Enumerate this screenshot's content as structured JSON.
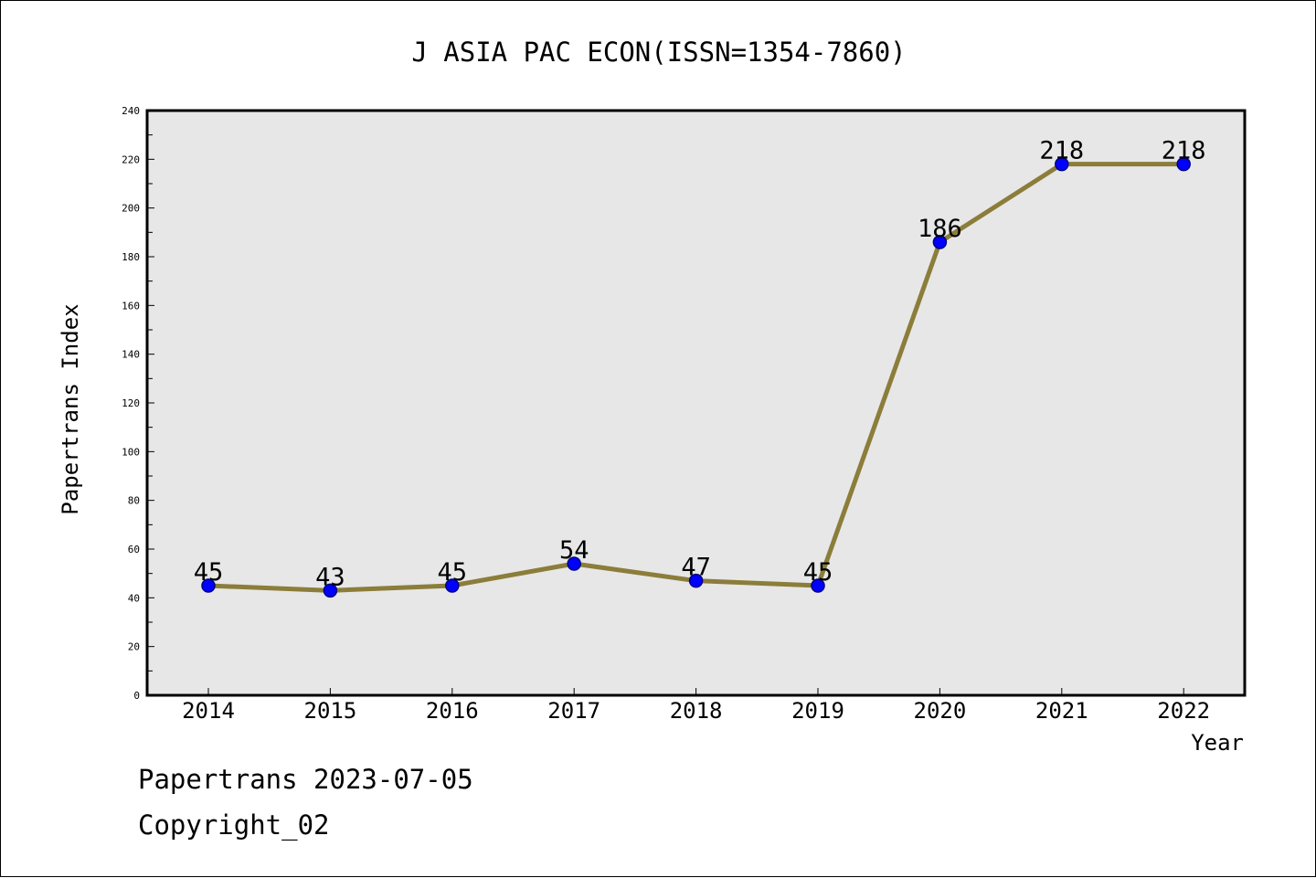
{
  "chart_data": {
    "type": "line",
    "title": "J ASIA PAC ECON(ISSN=1354-7860)",
    "xlabel": "Year",
    "ylabel": "Papertrans Index",
    "categories": [
      "2014",
      "2015",
      "2016",
      "2017",
      "2018",
      "2019",
      "2020",
      "2021",
      "2022"
    ],
    "series": [
      {
        "values": [
          45,
          43,
          45,
          54,
          47,
          45,
          186,
          218,
          218
        ]
      }
    ],
    "data_labels": [
      "45",
      "43",
      "45",
      "54",
      "47",
      "45",
      "186",
      "218",
      "218"
    ],
    "ylim": [
      0,
      240
    ],
    "y_ticks": [
      "0",
      "20",
      "40",
      "60",
      "80",
      "100",
      "120",
      "140",
      "160",
      "180",
      "200",
      "220",
      "240"
    ],
    "grid": false,
    "legend": "none",
    "colors": {
      "line": "#8b7d3a",
      "marker_fill": "#0000ff",
      "marker_edge": "#000080",
      "plot_background": "#e7e7e7"
    }
  },
  "footer": {
    "line1": "Papertrans 2023-07-05",
    "line2": "Copyright_02"
  }
}
